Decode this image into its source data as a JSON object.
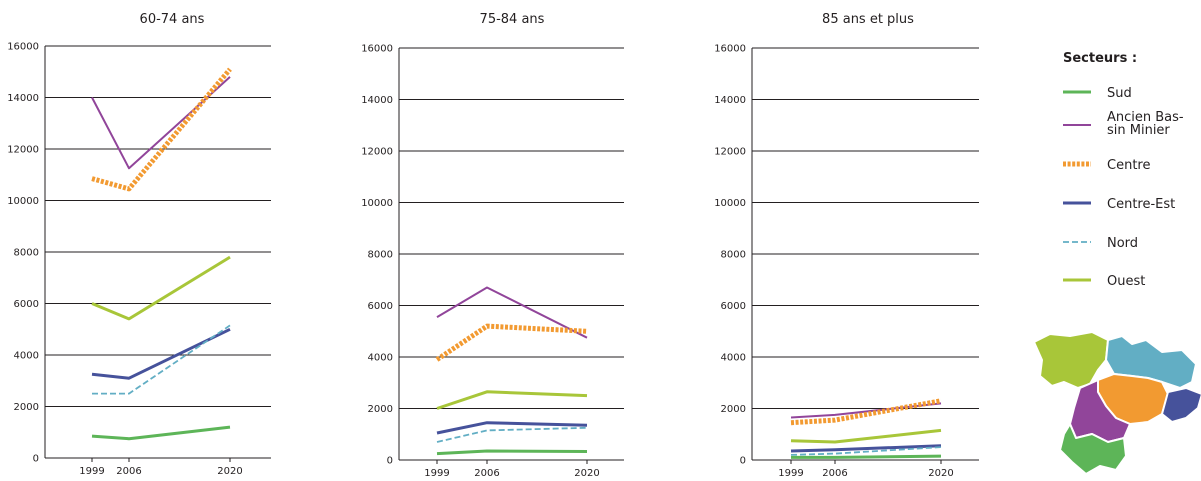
{
  "legend": {
    "title": "Secteurs :",
    "items": [
      {
        "key": "sud",
        "lines": [
          "Sud"
        ]
      },
      {
        "key": "abm",
        "lines": [
          "Ancien Bas-",
          "sin Minier"
        ]
      },
      {
        "key": "centre",
        "lines": [
          "Centre"
        ]
      },
      {
        "key": "centre_est",
        "lines": [
          "Centre-Est"
        ]
      },
      {
        "key": "nord",
        "lines": [
          "Nord"
        ]
      },
      {
        "key": "ouest",
        "lines": [
          "Ouest"
        ]
      }
    ]
  },
  "colors": {
    "sud": "#5db558",
    "abm": "#91459a",
    "centre": "#f29a31",
    "centre_est": "#46529b",
    "nord": "#62aec4",
    "ouest": "#a8c639"
  },
  "map_icon": "region-map",
  "chart_data": [
    {
      "type": "line",
      "title": "60-74 ans",
      "x": [
        "1999",
        "2006",
        "2020"
      ],
      "ylim": [
        0,
        16000
      ],
      "yticks": [
        0,
        2000,
        4000,
        6000,
        8000,
        10000,
        12000,
        14000,
        16000
      ],
      "grid": true,
      "series": [
        {
          "key": "sud",
          "name": "Sud",
          "values": [
            850,
            750,
            1200
          ]
        },
        {
          "key": "abm",
          "name": "Ancien Bassin Minier",
          "values": [
            14000,
            11250,
            14800
          ]
        },
        {
          "key": "centre",
          "name": "Centre",
          "values": [
            10850,
            10450,
            15100
          ]
        },
        {
          "key": "centre_est",
          "name": "Centre-Est",
          "values": [
            3250,
            3100,
            5000
          ]
        },
        {
          "key": "nord",
          "name": "Nord",
          "values": [
            2500,
            2500,
            5150
          ]
        },
        {
          "key": "ouest",
          "name": "Ouest",
          "values": [
            6000,
            5400,
            7800
          ]
        }
      ]
    },
    {
      "type": "line",
      "title": "75-84 ans",
      "x": [
        "1999",
        "2006",
        "2020"
      ],
      "ylim": [
        0,
        16000
      ],
      "yticks": [
        0,
        2000,
        4000,
        6000,
        8000,
        10000,
        12000,
        14000,
        16000
      ],
      "grid": true,
      "series": [
        {
          "key": "sud",
          "name": "Sud",
          "values": [
            250,
            350,
            330
          ]
        },
        {
          "key": "abm",
          "name": "Ancien Bassin Minier",
          "values": [
            5550,
            6700,
            4750
          ]
        },
        {
          "key": "centre",
          "name": "Centre",
          "values": [
            3900,
            5200,
            5000
          ]
        },
        {
          "key": "centre_est",
          "name": "Centre-Est",
          "values": [
            1050,
            1450,
            1350
          ]
        },
        {
          "key": "nord",
          "name": "Nord",
          "values": [
            700,
            1150,
            1250
          ]
        },
        {
          "key": "ouest",
          "name": "Ouest",
          "values": [
            2000,
            2650,
            2500
          ]
        }
      ]
    },
    {
      "type": "line",
      "title": "85 ans et plus",
      "x": [
        "1999",
        "2006",
        "2020"
      ],
      "ylim": [
        0,
        16000
      ],
      "yticks": [
        0,
        2000,
        4000,
        6000,
        8000,
        10000,
        12000,
        14000,
        16000
      ],
      "grid": true,
      "series": [
        {
          "key": "sud",
          "name": "Sud",
          "values": [
            100,
            100,
            150
          ]
        },
        {
          "key": "abm",
          "name": "Ancien Bassin Minier",
          "values": [
            1650,
            1750,
            2200
          ]
        },
        {
          "key": "centre",
          "name": "Centre",
          "values": [
            1450,
            1550,
            2300
          ]
        },
        {
          "key": "centre_est",
          "name": "Centre-Est",
          "values": [
            350,
            400,
            550
          ]
        },
        {
          "key": "nord",
          "name": "Nord",
          "values": [
            200,
            250,
            500
          ]
        },
        {
          "key": "ouest",
          "name": "Ouest",
          "values": [
            750,
            700,
            1150
          ]
        }
      ]
    }
  ]
}
